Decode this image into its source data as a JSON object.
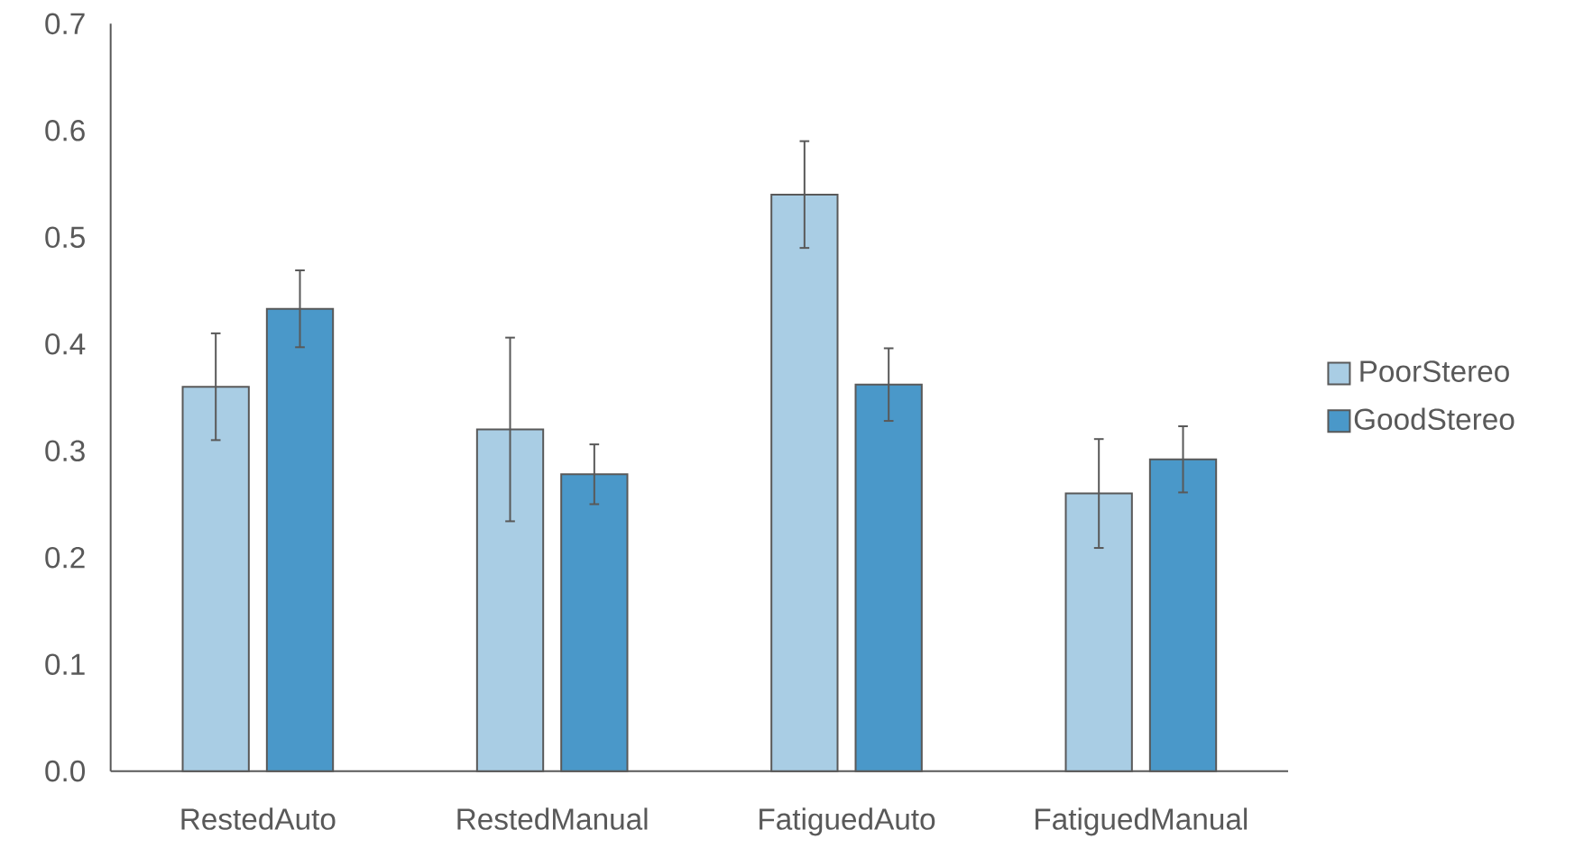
{
  "chart_data": {
    "type": "bar",
    "categories": [
      "RestedAuto",
      "RestedManual",
      "FatiguedAuto",
      "FatiguedManual"
    ],
    "series": [
      {
        "name": "PoorStereo",
        "color": "#a9cde4",
        "values": [
          0.36,
          0.32,
          0.54,
          0.26
        ],
        "errors": [
          0.05,
          0.086,
          0.05,
          0.051
        ]
      },
      {
        "name": "GoodStereo",
        "color": "#4a98c9",
        "values": [
          0.433,
          0.278,
          0.362,
          0.292
        ],
        "errors": [
          0.036,
          0.028,
          0.034,
          0.031
        ]
      }
    ],
    "ylim": [
      0,
      0.7
    ],
    "yticks": [
      {
        "value": 0,
        "label": "0.0"
      },
      0.1,
      0.2,
      0.3,
      0.4,
      0.5,
      0.6,
      0.7
    ],
    "grid": false,
    "legend": "right"
  }
}
